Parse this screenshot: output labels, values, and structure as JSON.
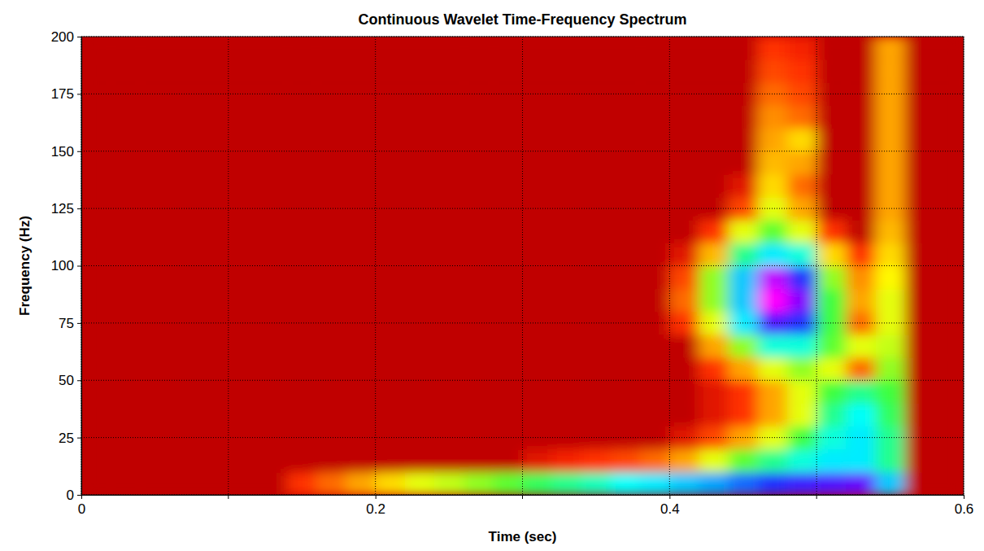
{
  "chart_data": {
    "type": "heatmap",
    "title": "Continuous Wavelet Time-Frequency Spectrum",
    "x_label": "Time (sec)",
    "y_label": "Frequency (Hz)",
    "x": [
      0.01,
      0.03,
      0.05,
      0.07,
      0.09,
      0.11,
      0.13,
      0.15,
      0.17,
      0.19,
      0.21,
      0.23,
      0.25,
      0.27,
      0.29,
      0.31,
      0.33,
      0.35,
      0.37,
      0.39,
      0.41,
      0.43,
      0.45,
      0.47,
      0.49,
      0.51,
      0.53,
      0.55,
      0.57,
      0.59
    ],
    "y": [
      5,
      15,
      25,
      35,
      45,
      55,
      65,
      75,
      85,
      95,
      105,
      115,
      125,
      135,
      145,
      155,
      165,
      175,
      185,
      195
    ],
    "values": [
      [
        0,
        0,
        0,
        0,
        0,
        0,
        0,
        0.1,
        0.15,
        0.2,
        0.25,
        0.3,
        0.32,
        0.35,
        0.38,
        0.42,
        0.45,
        0.48,
        0.52,
        0.55,
        0.6,
        0.65,
        0.7,
        0.75,
        0.78,
        0.8,
        0.82,
        0.6,
        0,
        0
      ],
      [
        0,
        0,
        0,
        0,
        0,
        0,
        0,
        0,
        0,
        0,
        0,
        0,
        0,
        0,
        0,
        0.05,
        0.08,
        0.1,
        0.12,
        0.15,
        0.2,
        0.3,
        0.38,
        0.45,
        0.5,
        0.55,
        0.55,
        0.45,
        0,
        0
      ],
      [
        0,
        0,
        0,
        0,
        0,
        0,
        0,
        0,
        0,
        0,
        0,
        0,
        0,
        0,
        0,
        0,
        0,
        0,
        0,
        0,
        0.05,
        0.12,
        0.2,
        0.3,
        0.4,
        0.5,
        0.55,
        0.45,
        0,
        0
      ],
      [
        0,
        0,
        0,
        0,
        0,
        0,
        0,
        0,
        0,
        0,
        0,
        0,
        0,
        0,
        0,
        0,
        0,
        0,
        0,
        0,
        0,
        0.05,
        0.1,
        0.2,
        0.3,
        0.45,
        0.52,
        0.42,
        0,
        0
      ],
      [
        0,
        0,
        0,
        0,
        0,
        0,
        0,
        0,
        0,
        0,
        0,
        0,
        0,
        0,
        0,
        0,
        0,
        0,
        0,
        0,
        0,
        0.05,
        0.1,
        0.2,
        0.3,
        0.4,
        0.45,
        0.4,
        0,
        0
      ],
      [
        0,
        0,
        0,
        0,
        0,
        0,
        0,
        0,
        0,
        0,
        0,
        0,
        0,
        0,
        0,
        0,
        0,
        0,
        0,
        0,
        0,
        0.1,
        0.2,
        0.3,
        0.35,
        0.3,
        0.15,
        0.35,
        0,
        0
      ],
      [
        0,
        0,
        0,
        0,
        0,
        0,
        0,
        0,
        0,
        0,
        0,
        0,
        0,
        0,
        0,
        0,
        0,
        0,
        0,
        0,
        0,
        0.2,
        0.35,
        0.5,
        0.5,
        0.38,
        0.3,
        0.32,
        0,
        0
      ],
      [
        0,
        0,
        0,
        0,
        0,
        0,
        0,
        0,
        0,
        0,
        0,
        0,
        0,
        0,
        0,
        0,
        0,
        0,
        0,
        0,
        0.1,
        0.3,
        0.55,
        0.8,
        0.75,
        0.4,
        0.15,
        0.3,
        0,
        0
      ],
      [
        0,
        0,
        0,
        0,
        0,
        0,
        0,
        0,
        0,
        0,
        0,
        0,
        0,
        0,
        0,
        0,
        0,
        0,
        0,
        0,
        0.15,
        0.35,
        0.6,
        0.95,
        0.85,
        0.4,
        0.2,
        0.3,
        0,
        0
      ],
      [
        0,
        0,
        0,
        0,
        0,
        0,
        0,
        0,
        0,
        0,
        0,
        0,
        0,
        0,
        0,
        0,
        0,
        0,
        0,
        0,
        0.12,
        0.35,
        0.6,
        0.9,
        0.75,
        0.35,
        0.18,
        0.28,
        0,
        0
      ],
      [
        0,
        0,
        0,
        0,
        0,
        0,
        0,
        0,
        0,
        0,
        0,
        0,
        0,
        0,
        0,
        0,
        0,
        0,
        0,
        0,
        0.05,
        0.22,
        0.45,
        0.55,
        0.5,
        0.25,
        0.1,
        0.25,
        0,
        0
      ],
      [
        0,
        0,
        0,
        0,
        0,
        0,
        0,
        0,
        0,
        0,
        0,
        0,
        0,
        0,
        0,
        0,
        0,
        0,
        0,
        0,
        0,
        0.1,
        0.3,
        0.38,
        0.3,
        0.1,
        0,
        0.22,
        0,
        0
      ],
      [
        0,
        0,
        0,
        0,
        0,
        0,
        0,
        0,
        0,
        0,
        0,
        0,
        0,
        0,
        0,
        0,
        0,
        0,
        0,
        0,
        0,
        0,
        0.12,
        0.3,
        0.2,
        0,
        0,
        0.2,
        0,
        0
      ],
      [
        0,
        0,
        0,
        0,
        0,
        0,
        0,
        0,
        0,
        0,
        0,
        0,
        0,
        0,
        0,
        0,
        0,
        0,
        0,
        0,
        0,
        0,
        0.05,
        0.25,
        0.15,
        0,
        0,
        0.2,
        0,
        0
      ],
      [
        0,
        0,
        0,
        0,
        0,
        0,
        0,
        0,
        0,
        0,
        0,
        0,
        0,
        0,
        0,
        0,
        0,
        0,
        0,
        0,
        0,
        0,
        0,
        0.22,
        0.2,
        0,
        0,
        0.2,
        0,
        0
      ],
      [
        0,
        0,
        0,
        0,
        0,
        0,
        0,
        0,
        0,
        0,
        0,
        0,
        0,
        0,
        0,
        0,
        0,
        0,
        0,
        0,
        0,
        0,
        0,
        0.2,
        0.25,
        0,
        0,
        0.2,
        0,
        0
      ],
      [
        0,
        0,
        0,
        0,
        0,
        0,
        0,
        0,
        0,
        0,
        0,
        0,
        0,
        0,
        0,
        0,
        0,
        0,
        0,
        0,
        0,
        0,
        0,
        0.18,
        0.15,
        0,
        0,
        0.2,
        0,
        0
      ],
      [
        0,
        0,
        0,
        0,
        0,
        0,
        0,
        0,
        0,
        0,
        0,
        0,
        0,
        0,
        0,
        0,
        0,
        0,
        0,
        0,
        0,
        0,
        0,
        0.15,
        0.12,
        0,
        0,
        0.2,
        0,
        0
      ],
      [
        0,
        0,
        0,
        0,
        0,
        0,
        0,
        0,
        0,
        0,
        0,
        0,
        0,
        0,
        0,
        0,
        0,
        0,
        0,
        0,
        0,
        0,
        0,
        0.12,
        0.1,
        0,
        0,
        0.2,
        0,
        0
      ],
      [
        0,
        0,
        0,
        0,
        0,
        0,
        0,
        0,
        0,
        0,
        0,
        0,
        0,
        0,
        0,
        0,
        0,
        0,
        0,
        0,
        0,
        0,
        0,
        0.1,
        0.08,
        0,
        0,
        0.2,
        0,
        0
      ]
    ],
    "xlim": [
      0,
      0.6
    ],
    "ylim": [
      0,
      200
    ],
    "xticks": [
      0,
      0.2,
      0.4,
      0.6
    ],
    "yticks": [
      0,
      25,
      50,
      75,
      100,
      125,
      150,
      175,
      200
    ],
    "grid": true
  }
}
